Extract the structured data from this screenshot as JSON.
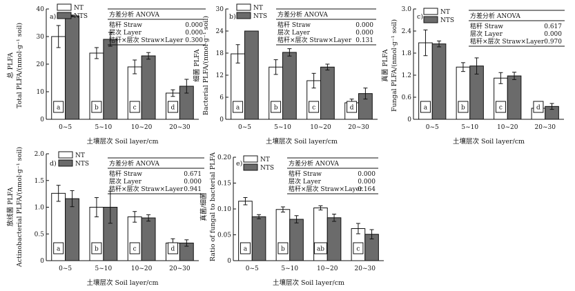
{
  "chart_data": [
    {
      "type": "bar",
      "panel_label": "a)",
      "ylabel_cn": "总 PLFA",
      "ylabel_en": "Total PLFA/(nmol·g⁻¹ soil)",
      "xlabel": "土壤层次 Soil layer/cm",
      "categories": [
        "0~5",
        "5~10",
        "10~20",
        "20~30"
      ],
      "ylim": [
        0,
        40
      ],
      "yticks": [
        "0",
        "10",
        "20",
        "30",
        "40"
      ],
      "series": [
        {
          "name": "NT",
          "values": [
            30.0,
            24.0,
            19.0,
            9.5
          ],
          "errors": [
            4.0,
            2.0,
            2.5,
            1.2
          ]
        },
        {
          "name": "NTS",
          "values": [
            37.5,
            29.0,
            23.0,
            12.0
          ],
          "errors": [
            0.3,
            2.5,
            1.2,
            2.5
          ]
        }
      ],
      "letters": [
        "a",
        "b",
        "c",
        "d"
      ],
      "anova": {
        "title": "方差分析 ANOVA",
        "rows": [
          {
            "label": "秸秆 Straw",
            "value": "0.000"
          },
          {
            "label": "层次 Layer",
            "value": "0.000"
          },
          {
            "label": "秸秆×层次 Straw×Layer",
            "value": "0.300"
          }
        ]
      }
    },
    {
      "type": "bar",
      "panel_label": "b)",
      "ylabel_cn": "细菌 PLFA",
      "ylabel_en": "Bacterial PLFA/(nmol·g⁻¹ soil)",
      "xlabel": "土壤层次 Soil layer/cm",
      "categories": [
        "0~5",
        "5~10",
        "10~20",
        "20~30"
      ],
      "ylim": [
        0,
        30
      ],
      "yticks": [
        "0",
        "6",
        "12",
        "18",
        "24",
        "30"
      ],
      "series": [
        {
          "name": "NT",
          "values": [
            17.8,
            14.2,
            10.5,
            4.5
          ],
          "errors": [
            2.5,
            2.0,
            2.0,
            1.0
          ]
        },
        {
          "name": "NTS",
          "values": [
            24.0,
            18.2,
            14.2,
            7.0
          ],
          "errors": [
            0.0,
            1.0,
            0.8,
            1.5
          ]
        }
      ],
      "letters": [
        "a",
        "b",
        "c",
        "d"
      ],
      "anova": {
        "title": "方差分析 ANOVA",
        "rows": [
          {
            "label": "秸秆 Straw",
            "value": "0.000"
          },
          {
            "label": "层次 Layer",
            "value": "0.000"
          },
          {
            "label": "秸秆×层次 Straw×Layer",
            "value": "0.131"
          }
        ]
      }
    },
    {
      "type": "bar",
      "panel_label": "c)",
      "ylabel_cn": "真菌 PLFA",
      "ylabel_en": "Fungal PLFA/(nmol·g⁻¹ soil)",
      "xlabel": "土壤层次 Soil layer/cm",
      "categories": [
        "0~5",
        "5~10",
        "10~20",
        "20~30"
      ],
      "ylim": [
        0,
        3.0
      ],
      "yticks": [
        "0",
        "0.6",
        "1.2",
        "1.8",
        "2.4",
        "3.0"
      ],
      "series": [
        {
          "name": "NT",
          "values": [
            2.08,
            1.42,
            1.12,
            0.3
          ],
          "errors": [
            0.35,
            0.12,
            0.15,
            0.06
          ]
        },
        {
          "name": "NTS",
          "values": [
            2.05,
            1.45,
            1.18,
            0.35
          ],
          "errors": [
            0.08,
            0.22,
            0.1,
            0.08
          ]
        }
      ],
      "letters": [
        "a",
        "b",
        "c",
        "d"
      ],
      "anova": {
        "title": "方差分析 ANOVA",
        "rows": [
          {
            "label": "秸秆 Straw",
            "value": "0.617"
          },
          {
            "label": "层次 Layer",
            "value": "0.000"
          },
          {
            "label": "秸秆×层次 Straw×Layer",
            "value": "0.970"
          }
        ]
      }
    },
    {
      "type": "bar",
      "panel_label": "d)",
      "ylabel_cn": "放线菌 PLFA",
      "ylabel_en": "Actinobacterial PLFA/(nmol·g⁻¹ soil)",
      "xlabel": "土壤层次 Soil layer/cm",
      "categories": [
        "0~5",
        "5~10",
        "10~20",
        "20~30"
      ],
      "ylim": [
        0,
        2.0
      ],
      "yticks": [
        "0",
        "0.5",
        "1.0",
        "1.5",
        "2.0"
      ],
      "series": [
        {
          "name": "NT",
          "values": [
            1.26,
            1.0,
            0.82,
            0.33
          ],
          "errors": [
            0.15,
            0.18,
            0.1,
            0.08
          ]
        },
        {
          "name": "NTS",
          "values": [
            1.16,
            1.0,
            0.8,
            0.33
          ],
          "errors": [
            0.15,
            0.3,
            0.06,
            0.06
          ]
        }
      ],
      "letters": [
        "a",
        "b",
        "c",
        "d"
      ],
      "anova": {
        "title": "方差分析 ANOVA",
        "rows": [
          {
            "label": "秸秆 Straw",
            "value": "0.671"
          },
          {
            "label": "层次 Layer",
            "value": "0.000"
          },
          {
            "label": "秸秆×层次 Straw×Layer",
            "value": "0.941"
          }
        ]
      }
    },
    {
      "type": "bar",
      "panel_label": "e)",
      "ylabel_cn": "真菌/细菌",
      "ylabel_en": "Ratio of fungal to bacterial PLFA",
      "xlabel": "土壤层次 Soil layer/cm",
      "categories": [
        "0~5",
        "5~10",
        "10~20",
        "20~30"
      ],
      "ylim": [
        0,
        0.2
      ],
      "yticks": [
        "0",
        "0.05",
        "0.10",
        "0.15",
        "0.20"
      ],
      "series": [
        {
          "name": "NT",
          "values": [
            0.115,
            0.099,
            0.102,
            0.062
          ],
          "errors": [
            0.007,
            0.005,
            0.004,
            0.01
          ]
        },
        {
          "name": "NTS",
          "values": [
            0.085,
            0.08,
            0.083,
            0.051
          ],
          "errors": [
            0.004,
            0.007,
            0.007,
            0.009
          ]
        }
      ],
      "letters": [
        "a",
        "b",
        "ab",
        "c"
      ],
      "anova": {
        "title": "方差分析 ANOVA",
        "rows": [
          {
            "label": "秸秆 Straw",
            "value": "0.000"
          },
          {
            "label": "层次 Layer",
            "value": "0.000"
          },
          {
            "label": "秸秆×层次 Straw×Layer",
            "value": "0.164"
          }
        ]
      }
    }
  ]
}
